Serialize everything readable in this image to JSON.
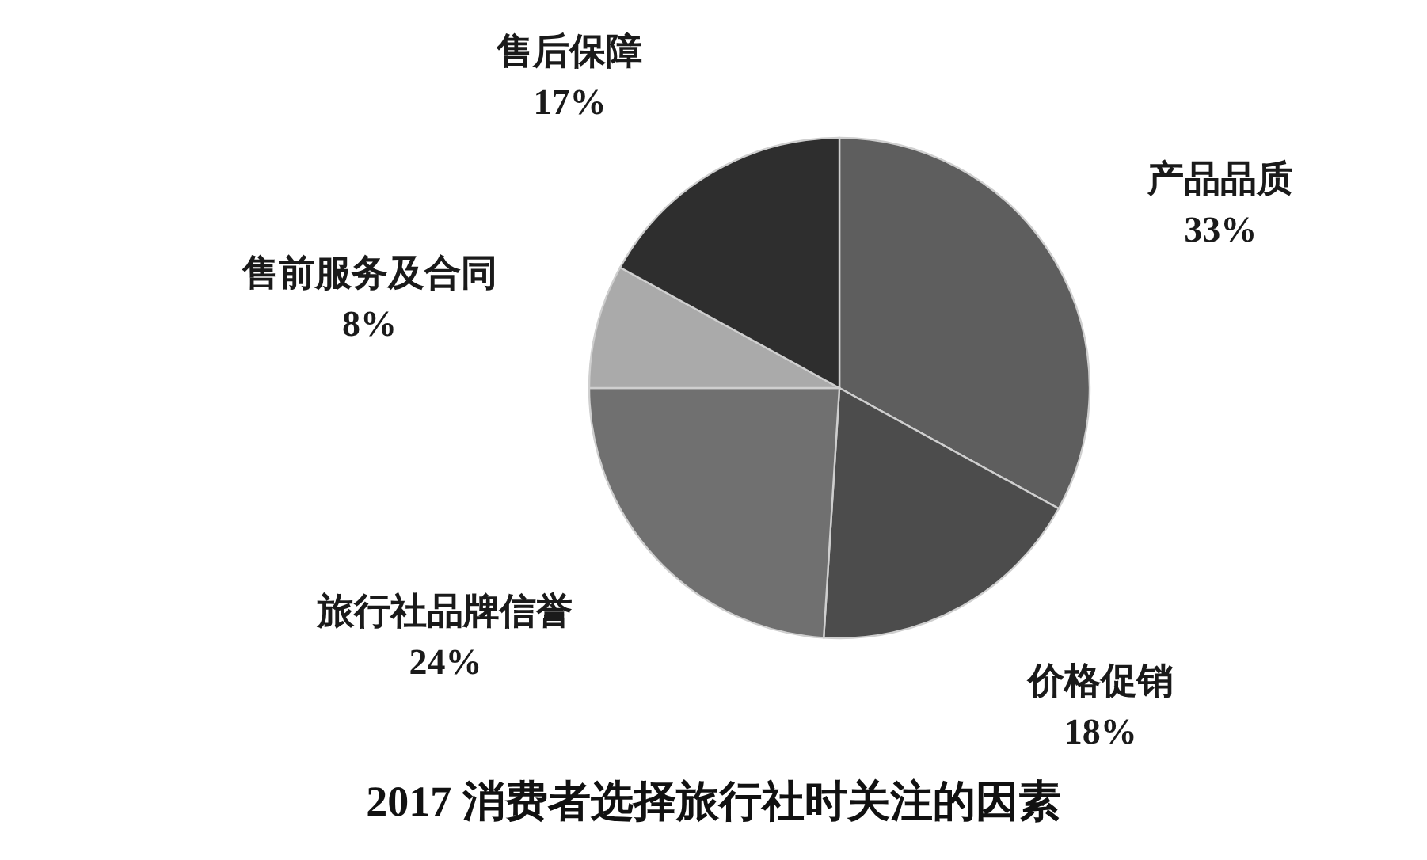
{
  "chart_data": {
    "type": "pie",
    "title": "2017 消费者选择旅行社时关注的因素",
    "categories": [
      "产品品质",
      "价格促销",
      "旅行社品牌信誉",
      "售前服务及合同",
      "售后保障"
    ],
    "values": [
      33,
      18,
      24,
      8,
      17
    ],
    "value_labels": [
      "33%",
      "18%",
      "24%",
      "8%",
      "17%"
    ],
    "colors": [
      "#5e5e5e",
      "#4c4c4c",
      "#707070",
      "#aaaaaa",
      "#2e2e2e"
    ]
  }
}
